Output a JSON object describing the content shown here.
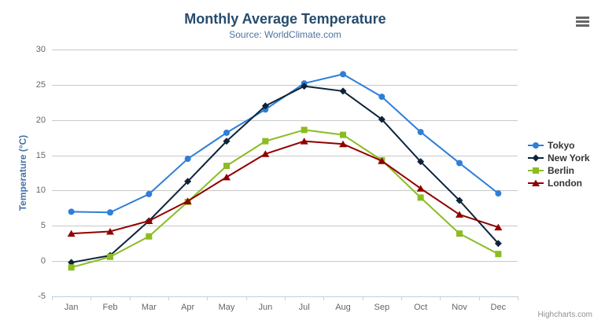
{
  "chart_data": {
    "type": "line",
    "title": "Monthly Average Temperature",
    "subtitle": "Source: WorldClimate.com",
    "xlabel": "",
    "ylabel": "Temperature (°C)",
    "ylim": [
      -5,
      30
    ],
    "yticks": [
      -5,
      0,
      5,
      10,
      15,
      20,
      25,
      30
    ],
    "grid": "horizontal",
    "legend_position": "right",
    "credit": "Highcharts.com",
    "categories": [
      "Jan",
      "Feb",
      "Mar",
      "Apr",
      "May",
      "Jun",
      "Jul",
      "Aug",
      "Sep",
      "Oct",
      "Nov",
      "Dec"
    ],
    "series": [
      {
        "name": "Tokyo",
        "color": "#2f7ed8",
        "marker": "circle",
        "values": [
          7.0,
          6.9,
          9.5,
          14.5,
          18.2,
          21.5,
          25.2,
          26.5,
          23.3,
          18.3,
          13.9,
          9.6
        ]
      },
      {
        "name": "New York",
        "color": "#0d233a",
        "marker": "diamond",
        "values": [
          -0.2,
          0.8,
          5.7,
          11.3,
          17.0,
          22.0,
          24.8,
          24.1,
          20.1,
          14.1,
          8.6,
          2.5
        ]
      },
      {
        "name": "Berlin",
        "color": "#8bbc21",
        "marker": "square",
        "values": [
          -0.9,
          0.6,
          3.5,
          8.4,
          13.5,
          17.0,
          18.6,
          17.9,
          14.3,
          9.0,
          3.9,
          1.0
        ]
      },
      {
        "name": "London",
        "color": "#910000",
        "marker": "triangle",
        "values": [
          3.9,
          4.2,
          5.7,
          8.5,
          11.9,
          15.2,
          17.0,
          16.6,
          14.2,
          10.3,
          6.6,
          4.8
        ]
      }
    ],
    "colors": {
      "grid": "#c8c8c8",
      "axis_line": "#c0d0e0",
      "tick_label": "#666666",
      "title": "#274b6d",
      "subtitle": "#4d759e",
      "axis_title": "#4572a7",
      "legend_text": "#333333",
      "credit": "#909090",
      "menu_icon": "#666666"
    },
    "icons": [
      "hamburger-menu-icon"
    ]
  }
}
